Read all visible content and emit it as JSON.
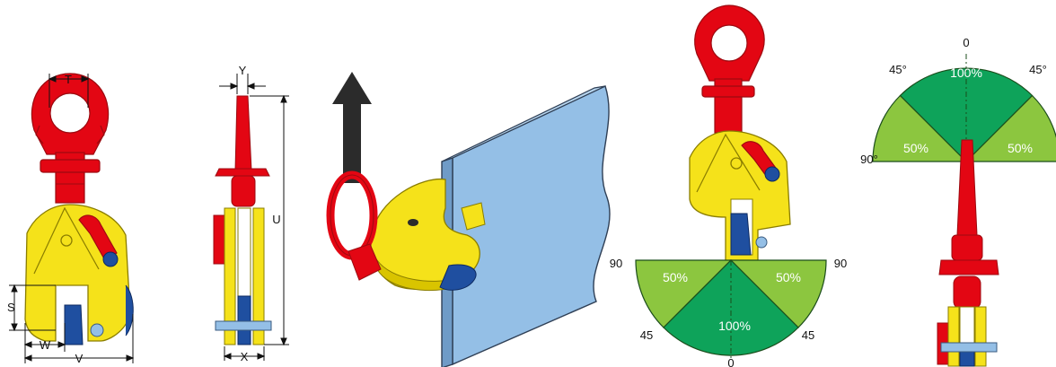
{
  "colors": {
    "clamp_body": "#f5e21a",
    "shackle_red": "#e30613",
    "plate_blue": "#94bfe6",
    "pad_blue": "#1f4fa0",
    "arrow": "#2b2b2b",
    "zone_full": "#0ea35a",
    "zone_half": "#8cc63f"
  },
  "front_view": {
    "dim_t": "T",
    "dim_s": "S",
    "dim_w": "W",
    "dim_v": "V"
  },
  "side_view": {
    "dim_y": "Y",
    "dim_u": "U",
    "dim_x": "X"
  },
  "lower_fan": {
    "angle_left": "90",
    "angle_right": "90",
    "angle_bottom_left": "45",
    "angle_bottom_right": "45",
    "angle_bottom": "0",
    "zone_left": "50%",
    "zone_center": "100%",
    "zone_right": "50%"
  },
  "upper_fan": {
    "angle_top": "0",
    "angle_top_left": "45°",
    "angle_top_right": "45°",
    "angle_left": "90°",
    "zone_left": "50%",
    "zone_center": "100%",
    "zone_right": "50%"
  },
  "icons": [
    "lifting-arrow-icon",
    "lifting-clamp-icon",
    "steel-plate-icon"
  ]
}
